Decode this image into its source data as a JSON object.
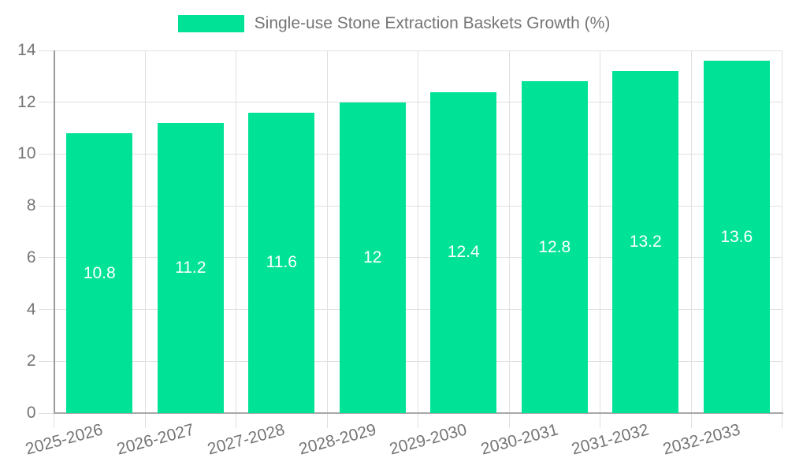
{
  "legend": {
    "label": "Single-use Stone Extraction Baskets Growth (%)"
  },
  "chart_data": {
    "type": "bar",
    "title": "Single-use Stone Extraction Baskets Growth (%)",
    "categories": [
      "2025-2026",
      "2026-2027",
      "2027-2028",
      "2028-2029",
      "2029-2030",
      "2030-2031",
      "2031-2032",
      "2032-2033"
    ],
    "series": [
      {
        "name": "Single-use Stone Extraction Baskets Growth (%)",
        "values": [
          10.8,
          11.2,
          11.6,
          12,
          12.4,
          12.8,
          13.2,
          13.6
        ]
      }
    ],
    "value_labels": [
      "10.8",
      "11.2",
      "11.6",
      "12",
      "12.4",
      "12.8",
      "13.2",
      "13.6"
    ],
    "xlabel": "",
    "ylabel": "",
    "ylim": [
      0,
      14
    ],
    "yticks": [
      0,
      2,
      4,
      6,
      8,
      10,
      12,
      14
    ],
    "grid": true,
    "legend_position": "top-center",
    "x_label_rotation_deg": -15,
    "colors": {
      "bar": "#00E396",
      "bar_value_text": "#ffffff",
      "axis_text": "#757575",
      "gridline": "#e0e0e0",
      "axis_line": "#a8a8a8",
      "background": "#ffffff"
    }
  }
}
